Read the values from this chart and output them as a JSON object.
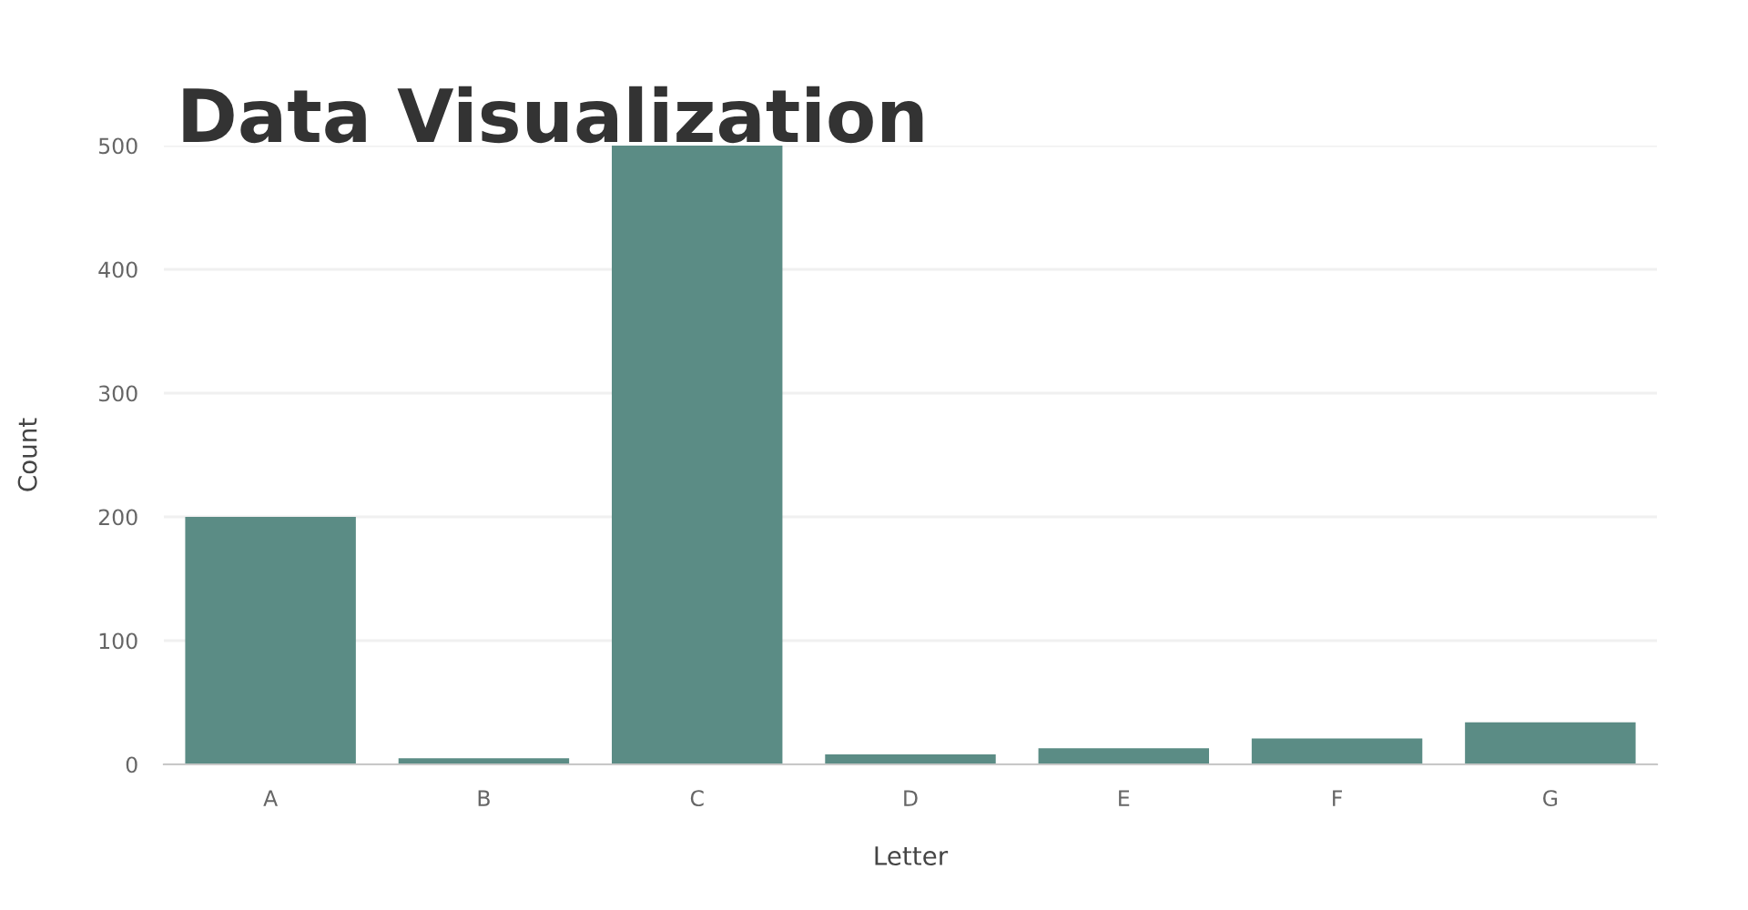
{
  "chart_data": {
    "type": "bar",
    "title": "Data Visualization",
    "xlabel": "Letter",
    "ylabel": "Count",
    "categories": [
      "A",
      "B",
      "C",
      "D",
      "E",
      "F",
      "G"
    ],
    "values": [
      200,
      5,
      500,
      8,
      13,
      21,
      34
    ],
    "color": "#5b8c85",
    "ylim": [
      0,
      500
    ],
    "yticks": [
      0,
      100,
      200,
      300,
      400,
      500
    ],
    "grid": "y",
    "legend": false
  }
}
